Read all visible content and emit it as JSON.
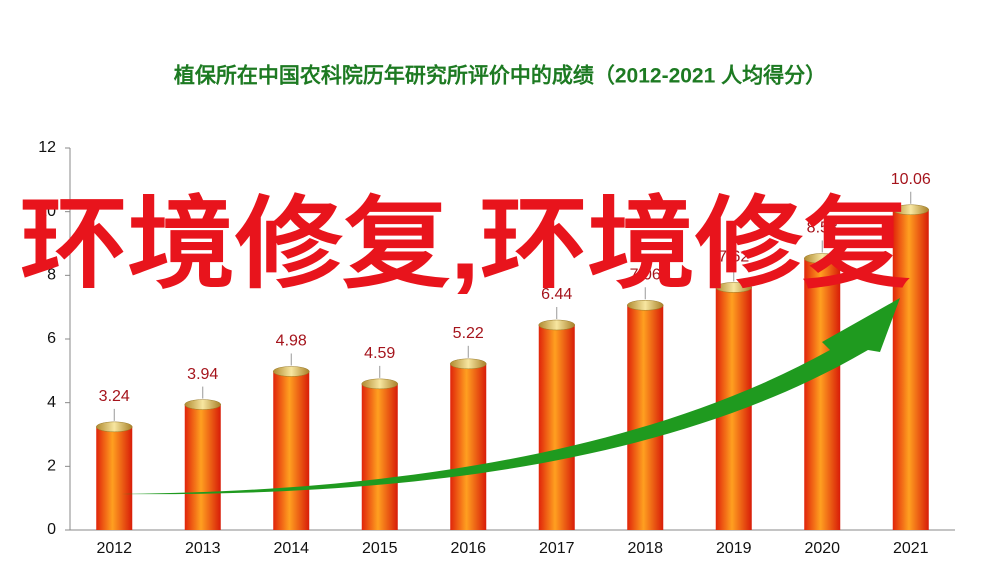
{
  "chart_data": {
    "type": "bar",
    "title": "植保所在中国农科院历年研究所评价中的成绩（2012-2021  人均得分）",
    "overlay_text": "环境修复,环境修复",
    "categories": [
      "2012",
      "2013",
      "2014",
      "2015",
      "2016",
      "2017",
      "2018",
      "2019",
      "2020",
      "2021"
    ],
    "values": [
      3.24,
      3.94,
      4.98,
      4.59,
      5.22,
      6.44,
      7.06,
      7.62,
      8.53,
      10.06
    ],
    "color": "#f0400e",
    "ylim": [
      0,
      12
    ],
    "yticks": [
      0,
      2,
      4,
      6,
      8,
      10,
      12
    ],
    "grid": false
  }
}
